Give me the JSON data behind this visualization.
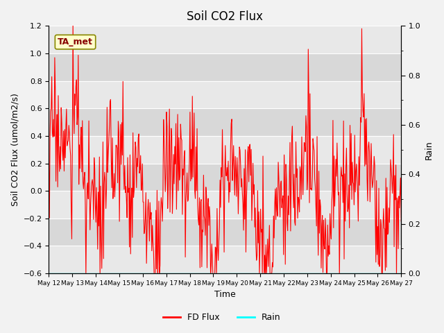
{
  "title": "Soil CO2 Flux",
  "ylabel_left": "Soil CO2 Flux (umol/m2/s)",
  "ylabel_right": "Rain",
  "xlabel": "Time",
  "ylim_left": [
    -0.6,
    1.2
  ],
  "ylim_right": [
    0.0,
    1.0
  ],
  "flux_color": "red",
  "rain_color": "cyan",
  "figure_bg": "#f2f2f2",
  "plot_bg_light": "#e8e8e8",
  "plot_bg_dark": "#d8d8d8",
  "annotation_text": "TA_met",
  "annotation_fg": "#880000",
  "annotation_bg": "#ffffcc",
  "annotation_border": "#888800",
  "x_tick_labels": [
    "May 12",
    "May 13",
    "May 14",
    "May 15",
    "May 16",
    "May 17",
    "May 18",
    "May 19",
    "May 20",
    "May 21",
    "May 22",
    "May 23",
    "May 24",
    "May 25",
    "May 26",
    "May 27"
  ],
  "yticks_left": [
    -0.6,
    -0.4,
    -0.2,
    0.0,
    0.2,
    0.4,
    0.6,
    0.8,
    1.0,
    1.2
  ],
  "yticks_right": [
    0.0,
    0.2,
    0.4,
    0.6,
    0.8,
    1.0
  ],
  "yticks_right_minor": [
    0.1,
    0.3,
    0.5,
    0.7,
    0.9
  ],
  "legend_entries": [
    "FD Flux",
    "Rain"
  ],
  "legend_colors": [
    "red",
    "cyan"
  ],
  "title_fontsize": 12,
  "label_fontsize": 9,
  "tick_fontsize": 8
}
